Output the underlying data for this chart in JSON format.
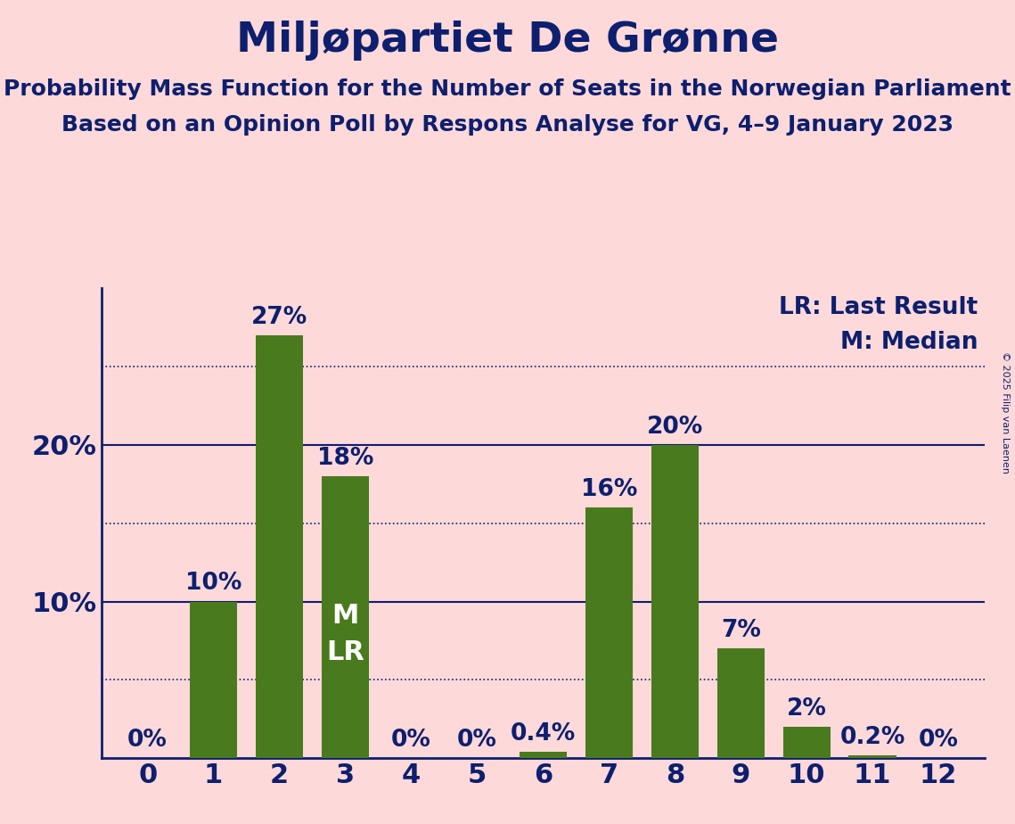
{
  "title": "Miljøpartiet De Grønne",
  "subtitle1": "Probability Mass Function for the Number of Seats in the Norwegian Parliament",
  "subtitle2": "Based on an Opinion Poll by Respons Analyse for VG, 4–9 January 2023",
  "copyright": "© 2025 Filip van Laenen",
  "categories": [
    0,
    1,
    2,
    3,
    4,
    5,
    6,
    7,
    8,
    9,
    10,
    11,
    12
  ],
  "values": [
    0.0,
    10.0,
    27.0,
    18.0,
    0.0,
    0.0,
    0.4,
    16.0,
    20.0,
    7.0,
    2.0,
    0.2,
    0.0
  ],
  "bar_color": "#4a7a1e",
  "background_color": "#fdd9d9",
  "text_color": "#0d1f6e",
  "bar_labels": [
    "0%",
    "10%",
    "27%",
    "18%",
    "0%",
    "0%",
    "0.4%",
    "16%",
    "20%",
    "7%",
    "2%",
    "0.2%",
    "0%"
  ],
  "median_bar": 3,
  "lr_bar": 3,
  "legend_lr": "LR: Last Result",
  "legend_m": "M: Median",
  "ylabel_ticks": [
    10,
    20
  ],
  "dotted_lines": [
    5,
    15,
    25
  ],
  "solid_lines": [
    10,
    20
  ],
  "ylim": [
    0,
    30
  ],
  "title_fontsize": 34,
  "subtitle_fontsize": 18,
  "bar_label_fontsize": 19,
  "legend_fontsize": 19,
  "ytick_fontsize": 22,
  "xtick_fontsize": 22,
  "mlr_fontsize": 22
}
